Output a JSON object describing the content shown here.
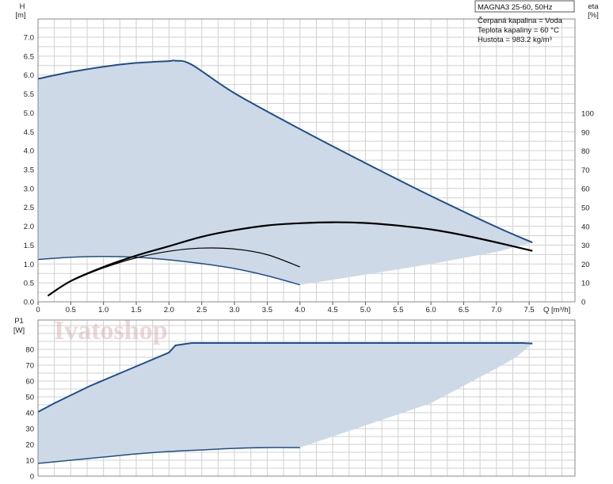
{
  "title_box": "MAGNA3 25-60, 50Hz",
  "info_lines": [
    "Čerpaná kapalina = Voda",
    "Teplota kapaliny = 60 °C",
    "Hustota = 983.2 kg/m³"
  ],
  "watermark": "Ivatoshop",
  "colors": {
    "curve_blue": "#1f4e8c",
    "area_fill": "#cdd9e6",
    "grid": "#d0d0d0",
    "eta": "#000000"
  },
  "chart_data": [
    {
      "type": "area",
      "name": "head-chart",
      "xlabel": "Q [m³/h]",
      "ylabel": "H",
      "ylabel_unit": "[m]",
      "y2label": "eta",
      "y2label_unit": "[%]",
      "xlim": [
        0,
        8.2
      ],
      "ylim": [
        0,
        7.0
      ],
      "y2lim": [
        0,
        100
      ],
      "x_ticks": [
        "0",
        "0.5",
        "1.0",
        "1.5",
        "2.0",
        "2.5",
        "3.0",
        "3.5",
        "4.0",
        "4.5",
        "5.0",
        "5.5",
        "6.0",
        "6.5",
        "7.0",
        "7.5"
      ],
      "y_ticks": [
        "0.0",
        "0.5",
        "1.0",
        "1.5",
        "2.0",
        "2.5",
        "3.0",
        "3.5",
        "4.0",
        "4.5",
        "5.0",
        "5.5",
        "6.0",
        "6.5",
        "7.0"
      ],
      "y2_ticks": [
        "0",
        "10",
        "20",
        "30",
        "40",
        "50",
        "60",
        "70",
        "80",
        "90",
        "100"
      ],
      "grid": true,
      "series": [
        {
          "role": "max-curve",
          "x": [
            0,
            0.5,
            1.0,
            1.5,
            2.0,
            2.1,
            2.35,
            3.0,
            4.0,
            5.0,
            6.0,
            7.0,
            7.55
          ],
          "y": [
            5.9,
            6.08,
            6.22,
            6.32,
            6.37,
            6.38,
            6.27,
            5.52,
            4.57,
            3.67,
            2.8,
            1.98,
            1.57
          ]
        },
        {
          "role": "min-curve",
          "x": [
            0,
            0.5,
            1.0,
            1.5,
            2.0,
            2.5,
            3.0,
            3.5,
            4.0
          ],
          "y": [
            1.12,
            1.18,
            1.2,
            1.18,
            1.11,
            1.01,
            0.88,
            0.69,
            0.45
          ]
        },
        {
          "role": "area-lower-right",
          "x": [
            4.0,
            4.2,
            5.0,
            6.0,
            7.0,
            7.55
          ],
          "y": [
            0.45,
            0.5,
            0.72,
            1.0,
            1.32,
            1.57
          ]
        },
        {
          "role": "eta-max",
          "x": [
            0.15,
            0.5,
            1.0,
            1.5,
            2.0,
            2.5,
            3.0,
            3.5,
            4.0,
            4.5,
            5.0,
            5.5,
            6.0,
            6.5,
            7.0,
            7.55
          ],
          "y2": [
            3.2,
            11,
            18.5,
            24.5,
            29.5,
            34.5,
            38,
            40.5,
            41.7,
            42.2,
            41.8,
            40.4,
            38.4,
            35.3,
            31.5,
            27
          ]
        },
        {
          "role": "eta-mid",
          "x": [
            0.5,
            1.0,
            1.5,
            2.0,
            2.5,
            3.0,
            3.5,
            4.0
          ],
          "y2": [
            11,
            18,
            23.3,
            26.8,
            28.5,
            28,
            25,
            18.5
          ]
        }
      ]
    },
    {
      "type": "area",
      "name": "power-chart",
      "xlabel": "",
      "ylabel": "P1",
      "ylabel_unit": "[W]",
      "xlim": [
        0,
        8.2
      ],
      "ylim": [
        0,
        90
      ],
      "y_ticks": [
        "0",
        "10",
        "20",
        "30",
        "40",
        "50",
        "60",
        "70",
        "80"
      ],
      "grid": true,
      "series": [
        {
          "role": "max-power",
          "x": [
            0,
            0.25,
            0.5,
            0.8,
            1.2,
            1.6,
            2.0,
            2.1,
            2.35,
            3.0,
            4.0,
            5.0,
            6.0,
            7.0,
            7.4,
            7.55
          ],
          "y": [
            40.5,
            46,
            51,
            57,
            64,
            71,
            78,
            82.5,
            84,
            84,
            84,
            84,
            84,
            84,
            84,
            83.7
          ]
        },
        {
          "role": "min-power",
          "x": [
            0,
            0.5,
            1.0,
            1.5,
            2.0,
            2.5,
            3.0,
            3.5,
            4.0
          ],
          "y": [
            8,
            10,
            12,
            14,
            15.5,
            16.5,
            17.5,
            18,
            18
          ]
        },
        {
          "role": "area-lower-right",
          "x": [
            4.0,
            4.5,
            5.0,
            5.5,
            6.0,
            6.5,
            7.0,
            7.3,
            7.55
          ],
          "y": [
            18,
            25,
            32,
            39,
            46,
            57,
            68,
            75,
            83.7
          ]
        }
      ]
    }
  ]
}
